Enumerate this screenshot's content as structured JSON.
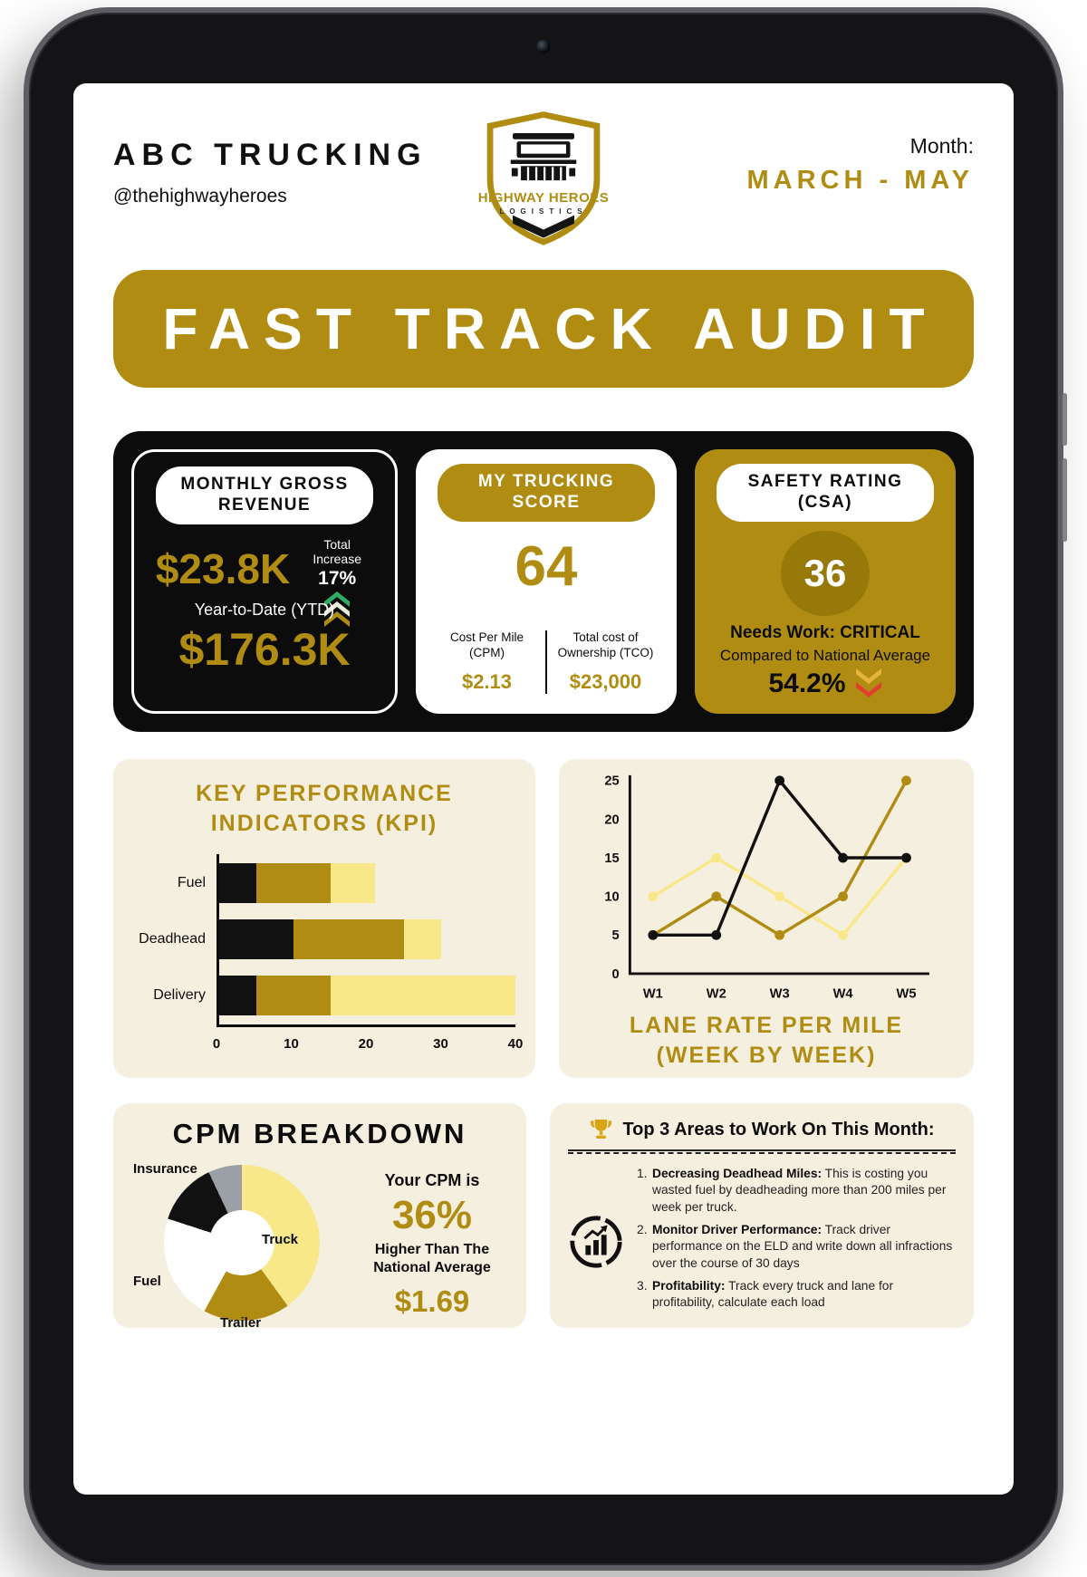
{
  "header": {
    "company": "ABC TRUCKING",
    "handle": "@thehighwayheroes",
    "logo_title": "HIGHWAY HEROES",
    "logo_subtitle": "LOGISTICS",
    "month_label": "Month:",
    "month_value": "MARCH - MAY"
  },
  "banner": {
    "title": "FAST TRACK AUDIT"
  },
  "stats": {
    "revenue": {
      "title": "MONTHLY GROSS REVENUE",
      "monthly_value": "$23.8K",
      "increase_label": "Total Increase",
      "increase_value": "17%",
      "ytd_label": "Year-to-Date (YTD)",
      "ytd_value": "$176.3K"
    },
    "score": {
      "title": "MY TRUCKING SCORE",
      "value": "64",
      "cpm_label": "Cost Per Mile (CPM)",
      "cpm_value": "$2.13",
      "tco_label": "Total cost of Ownership (TCO)",
      "tco_value": "$23,000"
    },
    "safety": {
      "title": "SAFETY RATING (CSA)",
      "value": "36",
      "status": "Needs Work: CRITICAL",
      "comparison_label": "Compared to National Average",
      "comparison_value": "54.2%"
    }
  },
  "cpm_breakdown": {
    "your_cpm_label": "Your CPM is",
    "percent": "36%",
    "higher_label": "Higher Than The National Average",
    "value": "$1.69"
  },
  "top3": {
    "title": "Top 3 Areas to Work On This Month:",
    "items": [
      {
        "lead": "Decreasing Deadhead Miles:",
        "text": " This is costing you wasted fuel by deadheading more than 200 miles per week per truck."
      },
      {
        "lead": "Monitor Driver Performance:",
        "text": " Track driver performance on the ELD and write down all infractions over the course of 30 days"
      },
      {
        "lead": "Profitability:",
        "text": " Track every truck and lane for profitability, calculate each load"
      }
    ]
  },
  "icons": {
    "logo": "truck-shield-icon",
    "revenue_trend": "triple-chevron-up-icon",
    "safety_trend": "double-chevron-down-icon",
    "top3_header": "trophy-icon",
    "top3_side": "analytics-circle-icon"
  },
  "colors": {
    "gold": "#b08d12",
    "dark_gold": "#97790a",
    "light_yellow": "#f8e88a",
    "cream": "#f5efdf",
    "black": "#111111",
    "white": "#ffffff",
    "green": "#2fae63",
    "red": "#e2402f",
    "gray": "#9aa0a6"
  },
  "chart_data": [
    {
      "type": "bar",
      "title": "KEY PERFORMANCE INDICATORS (KPI)",
      "orientation": "horizontal",
      "stacked": true,
      "categories": [
        "Fuel",
        "Deadhead",
        "Delivery"
      ],
      "series": [
        {
          "name": "black-segment",
          "color": "#111111",
          "values": [
            5,
            10,
            5
          ]
        },
        {
          "name": "gold-segment",
          "color": "#b08d12",
          "values": [
            10,
            15,
            10
          ]
        },
        {
          "name": "light-yellow-segment",
          "color": "#f8e88a",
          "values": [
            6,
            5,
            25
          ]
        }
      ],
      "xlim": [
        0,
        40
      ],
      "xticks": [
        0,
        10,
        20,
        30,
        40
      ],
      "grid": false,
      "legend": false
    },
    {
      "type": "line",
      "title": "LANE RATE PER MILE (WEEK BY WEEK)",
      "x": [
        "W1",
        "W2",
        "W3",
        "W4",
        "W5"
      ],
      "series": [
        {
          "name": "light-yellow-line",
          "color": "#f8e88a",
          "values": [
            10,
            15,
            10,
            5,
            15
          ]
        },
        {
          "name": "gold-line",
          "color": "#b08d12",
          "values": [
            5,
            10,
            5,
            10,
            25
          ]
        },
        {
          "name": "black-line",
          "color": "#111111",
          "values": [
            5,
            5,
            25,
            15,
            15
          ]
        }
      ],
      "ylim": [
        0,
        25
      ],
      "yticks": [
        0,
        5,
        10,
        15,
        20,
        25
      ],
      "grid": false,
      "legend": false
    },
    {
      "type": "pie",
      "title": "CPM BREAKDOWN",
      "donut": true,
      "slices": [
        {
          "label": "Truck",
          "value": 40,
          "color": "#f8e88a"
        },
        {
          "label": "Trailer",
          "value": 18,
          "color": "#b08d12"
        },
        {
          "label": "Fuel",
          "value": 22,
          "color": "#ffffff"
        },
        {
          "label": "Insurance",
          "value": 13,
          "color": "#111111"
        },
        {
          "label": "",
          "value": 7,
          "color": "#9aa0a6"
        }
      ]
    }
  ]
}
